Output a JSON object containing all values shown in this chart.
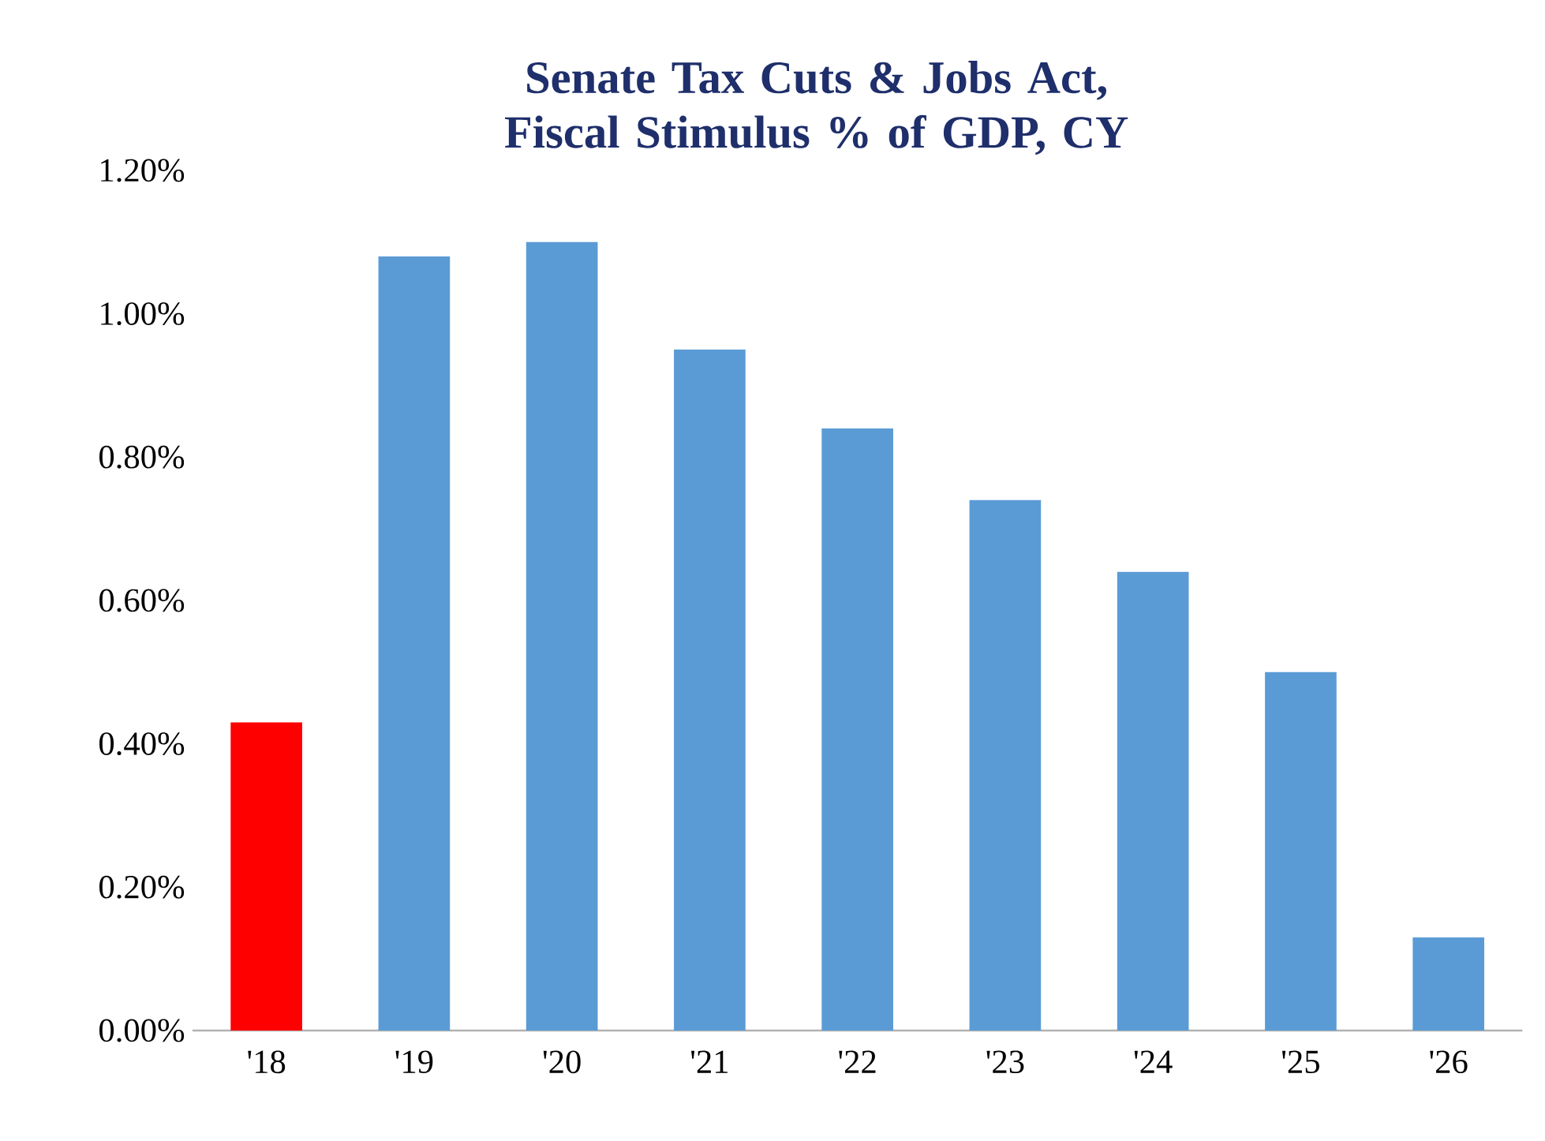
{
  "chart_data": {
    "type": "bar",
    "title": "Senate Tax Cuts & Jobs Act, Fiscal Stimulus % of GDP, CY",
    "categories": [
      "'18",
      "'19",
      "'20",
      "'21",
      "'22",
      "'23",
      "'24",
      "'25",
      "'26"
    ],
    "values": [
      0.43,
      1.08,
      1.1,
      0.95,
      0.84,
      0.74,
      0.64,
      0.5,
      0.13
    ],
    "colors": [
      "#ff0000",
      "#5b9bd5",
      "#5b9bd5",
      "#5b9bd5",
      "#5b9bd5",
      "#5b9bd5",
      "#5b9bd5",
      "#5b9bd5",
      "#5b9bd5"
    ],
    "ylim": [
      0,
      1.2
    ],
    "yticks": [
      {
        "value": 0,
        "label": "0.00%"
      },
      {
        "value": 0.2,
        "label": "0.20%"
      },
      {
        "value": 0.4,
        "label": "0.40%"
      },
      {
        "value": 0.6,
        "label": "0.60%"
      },
      {
        "value": 0.8,
        "label": "0.80%"
      },
      {
        "value": 1.0,
        "label": "1.00%"
      },
      {
        "value": 1.2,
        "label": "1.20%"
      }
    ]
  }
}
